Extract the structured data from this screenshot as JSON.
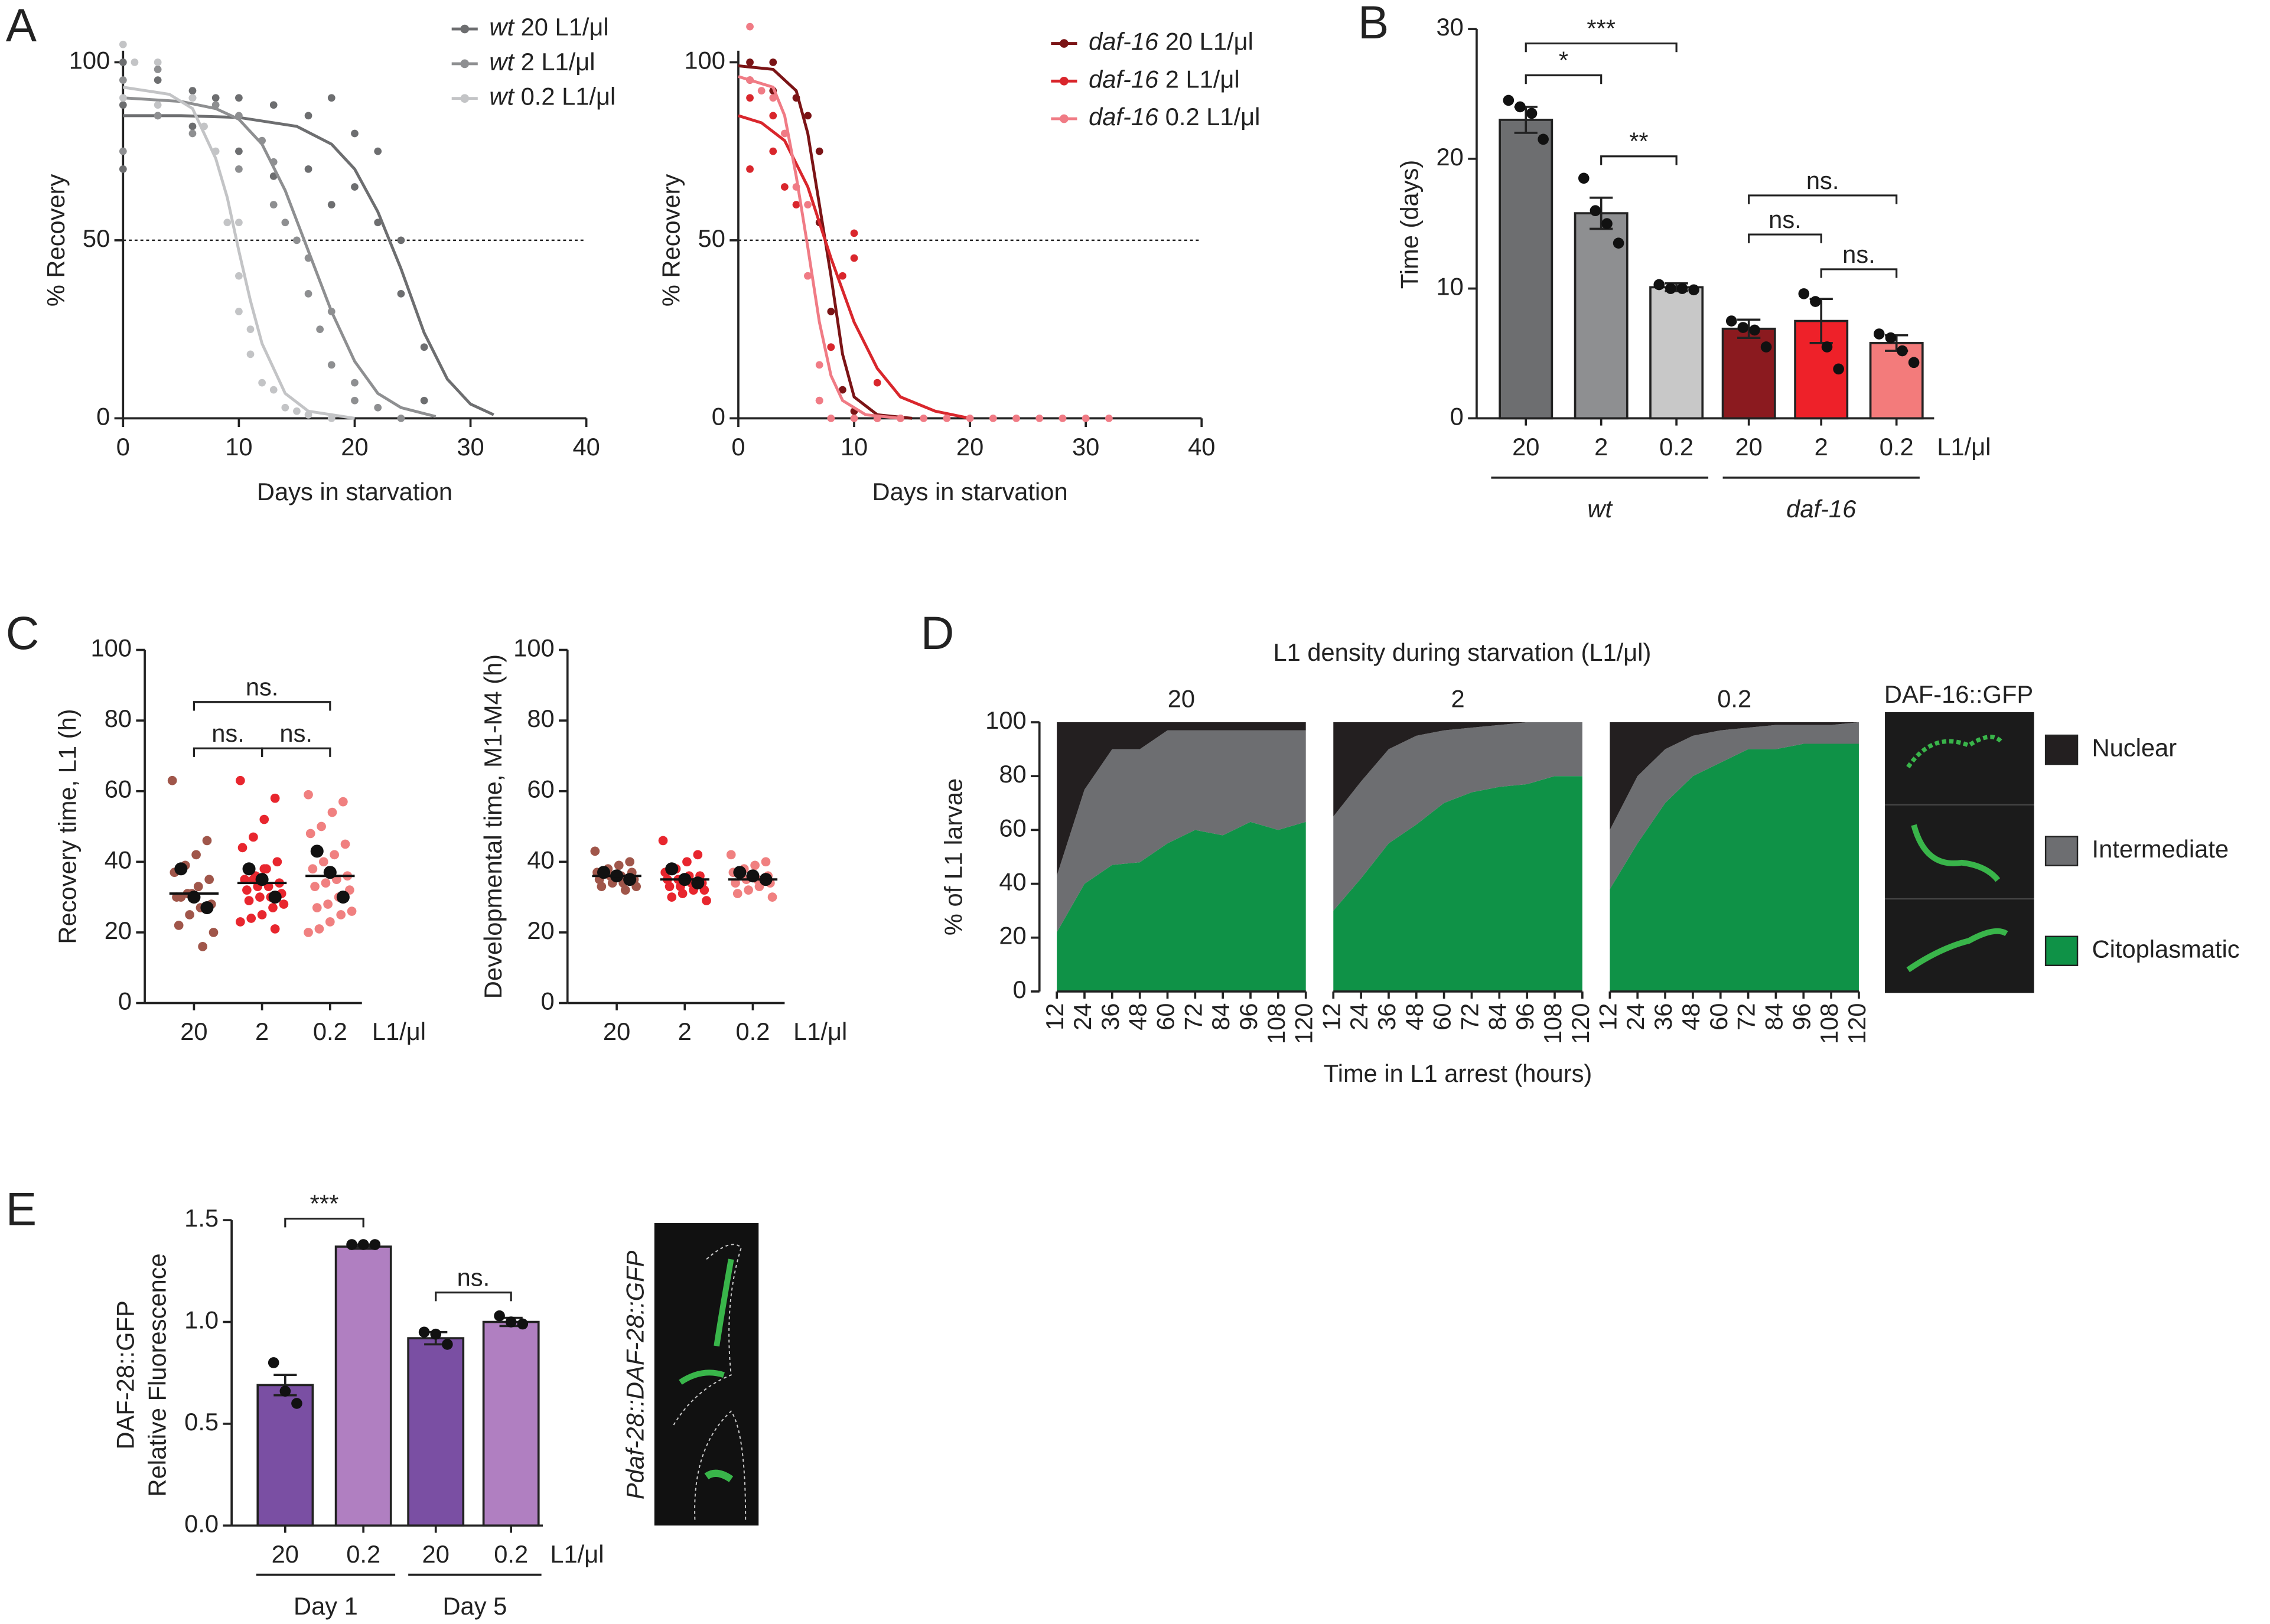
{
  "panel_labels": [
    "A",
    "B",
    "C",
    "D",
    "E"
  ],
  "chart_data": [
    {
      "type": "line",
      "ylabel": "% Recovery",
      "xlabel": "Days in starvation",
      "xlim": [
        0,
        40
      ],
      "xticks": [
        0,
        10,
        20,
        30,
        40
      ],
      "ylim": [
        0,
        100
      ],
      "yticks": [
        0,
        50,
        100
      ],
      "reference": 50,
      "series": [
        {
          "name": "wt 20 L1/μl",
          "color": "#6d6e70",
          "x": [
            0,
            5,
            10,
            15,
            18,
            20,
            22,
            23,
            24,
            26,
            28,
            30,
            32
          ],
          "values": [
            85,
            85,
            84.5,
            82,
            77,
            70,
            58,
            50,
            42,
            24,
            11,
            4,
            1
          ],
          "points_x": [
            0,
            0,
            0,
            3,
            3,
            6,
            6,
            8,
            10,
            10,
            13,
            13,
            16,
            16,
            18,
            18,
            20,
            20,
            22,
            22,
            24,
            24,
            26,
            26
          ],
          "points_y": [
            100,
            88,
            70,
            95,
            85,
            92,
            82,
            90,
            90,
            75,
            88,
            68,
            85,
            70,
            90,
            60,
            80,
            65,
            75,
            55,
            50,
            35,
            20,
            5
          ]
        },
        {
          "name": "wt 2 L1/μl",
          "color": "#8e8f91",
          "x": [
            0,
            5,
            8,
            10,
            12,
            14,
            16,
            18,
            20,
            22,
            24,
            27
          ],
          "values": [
            90,
            89,
            87,
            84,
            77,
            64,
            47,
            30,
            16,
            7,
            3,
            0.5
          ],
          "points_x": [
            0,
            0,
            3,
            3,
            6,
            6,
            8,
            10,
            10,
            12,
            13,
            13,
            14,
            15,
            16,
            16,
            17,
            18,
            18,
            20,
            20,
            22,
            24
          ],
          "points_y": [
            95,
            75,
            98,
            85,
            90,
            80,
            88,
            85,
            70,
            78,
            72,
            60,
            55,
            50,
            45,
            35,
            25,
            30,
            15,
            10,
            5,
            3,
            0
          ]
        },
        {
          "name": "wt 0.2 L1/μl",
          "color": "#c3c4c6",
          "x": [
            0,
            4,
            6,
            8,
            9,
            10,
            11,
            12,
            14,
            16,
            20
          ],
          "values": [
            93,
            91,
            87,
            73,
            62,
            47,
            33,
            21,
            7,
            2,
            0
          ],
          "points_x": [
            0,
            0,
            1,
            3,
            3,
            6,
            7,
            8,
            9,
            10,
            10,
            10,
            11,
            11,
            12,
            13,
            14,
            15,
            16,
            18
          ],
          "points_y": [
            105,
            90,
            100,
            100,
            88,
            90,
            82,
            75,
            55,
            55,
            40,
            30,
            25,
            18,
            10,
            8,
            3,
            2,
            1,
            0
          ]
        }
      ]
    },
    {
      "type": "line",
      "ylabel": "% Recovery",
      "xlabel": "Days in starvation",
      "xlim": [
        0,
        40
      ],
      "xticks": [
        0,
        10,
        20,
        30,
        40
      ],
      "ylim": [
        0,
        100
      ],
      "yticks": [
        0,
        50,
        100
      ],
      "reference": 50,
      "series": [
        {
          "name": "daf-16 20 L1/μl",
          "color": "#7b1416",
          "x": [
            0,
            3,
            5,
            6,
            7,
            7.5,
            8,
            9,
            10,
            12,
            15
          ],
          "values": [
            99,
            98,
            92,
            80,
            60,
            50,
            40,
            18,
            6,
            1,
            0
          ],
          "points_x": [
            1,
            1,
            3,
            3,
            5,
            6,
            7,
            7,
            8,
            8,
            9,
            10,
            12
          ],
          "points_y": [
            100,
            95,
            100,
            92,
            90,
            85,
            75,
            55,
            30,
            20,
            8,
            2,
            0
          ]
        },
        {
          "name": "daf-16 2 L1/μl",
          "color": "#d9262c",
          "x": [
            0,
            2,
            4,
            6,
            8,
            10,
            12,
            14,
            17,
            20
          ],
          "values": [
            85,
            83,
            78,
            65,
            45,
            27,
            14,
            6,
            2,
            0
          ],
          "points_x": [
            1,
            1,
            3,
            3,
            4,
            5,
            6,
            7,
            8,
            9,
            10,
            10,
            12,
            14
          ],
          "points_y": [
            90,
            70,
            85,
            75,
            65,
            60,
            40,
            5,
            20,
            40,
            52,
            45,
            10,
            0
          ]
        },
        {
          "name": "daf-16 0.2 L1/μl",
          "color": "#f07b85",
          "x": [
            0,
            3,
            4,
            5,
            6,
            7,
            8,
            9,
            11,
            14
          ],
          "values": [
            96,
            93,
            85,
            68,
            48,
            27,
            12,
            5,
            1,
            0
          ],
          "points_x": [
            1,
            1,
            2,
            3,
            4,
            5,
            6,
            6,
            7,
            7,
            8,
            10,
            12,
            14,
            16,
            18,
            20,
            22,
            24,
            26,
            28,
            30,
            32
          ],
          "points_y": [
            110,
            95,
            92,
            90,
            80,
            65,
            60,
            40,
            15,
            5,
            0,
            0,
            0,
            0,
            0,
            0,
            0,
            0,
            0,
            0,
            0,
            0,
            0
          ]
        }
      ]
    },
    {
      "type": "bar",
      "ylabel": "Time (days)",
      "ylim": [
        0,
        30
      ],
      "yticks": [
        0,
        10,
        20,
        30
      ],
      "categories": [
        "20",
        "2",
        "0.2",
        "20",
        "2",
        "0.2"
      ],
      "unit": "L1/μl",
      "groups": [
        "wt",
        "daf-16"
      ],
      "values": [
        23,
        15.8,
        10.1,
        6.9,
        7.5,
        5.8
      ],
      "errors": [
        1,
        1.2,
        0.3,
        0.7,
        1.7,
        0.6
      ],
      "colors": [
        "#6d6e70",
        "#8e8f91",
        "#c8c8c8",
        "#8b1a1f",
        "#ee2129",
        "#f37b7b"
      ],
      "points": [
        [
          24.5,
          24,
          23.5,
          21.5
        ],
        [
          18.5,
          16,
          15,
          13.5
        ],
        [
          10.3,
          10,
          10,
          9.9
        ],
        [
          7.5,
          7,
          6.8,
          5.5
        ],
        [
          9.6,
          9,
          5.5,
          3.8
        ],
        [
          6.5,
          6.2,
          5.2,
          4.3
        ]
      ],
      "annotations": [
        "***",
        "*",
        "**",
        "ns.",
        "ns.",
        "ns."
      ]
    },
    {
      "type": "strip",
      "ylabel": "Recovery time, L1 (h)",
      "ylim": [
        0,
        100
      ],
      "yticks": [
        0,
        20,
        40,
        60,
        80,
        100
      ],
      "categories": [
        "20",
        "2",
        "0.2"
      ],
      "unit": "L1/μl",
      "values": [
        31,
        34,
        36
      ],
      "colors": [
        "#a0564a",
        "#e8262e",
        "#f08080"
      ],
      "points": [
        [
          63,
          46,
          42,
          39,
          37,
          35,
          33,
          31,
          30,
          28,
          27,
          25,
          22,
          20,
          16,
          31,
          30
        ],
        [
          63,
          58,
          52,
          47,
          44,
          40,
          38,
          36,
          35,
          34,
          33,
          33,
          32,
          31,
          30,
          30,
          29,
          28,
          27,
          25,
          24,
          23,
          21,
          38,
          35
        ],
        [
          59,
          57,
          54,
          50,
          48,
          45,
          42,
          40,
          38,
          36,
          35,
          34,
          33,
          32,
          30,
          28,
          27,
          26,
          25,
          23,
          21,
          20
        ]
      ],
      "replicates": [
        [
          38,
          30,
          27
        ],
        [
          38,
          35,
          30
        ],
        [
          43,
          37,
          30
        ]
      ],
      "annotations": [
        "ns.",
        "ns.",
        "ns."
      ]
    },
    {
      "type": "strip",
      "ylabel": "Developmental time, M1-M4 (h)",
      "ylim": [
        0,
        100
      ],
      "yticks": [
        0,
        20,
        40,
        60,
        80,
        100
      ],
      "categories": [
        "20",
        "2",
        "0.2"
      ],
      "unit": "L1/μl",
      "values": [
        36,
        35,
        35
      ],
      "colors": [
        "#a0564a",
        "#e8262e",
        "#f08080"
      ],
      "points": [
        [
          43,
          40,
          39,
          38,
          37,
          37,
          36,
          36,
          35,
          35,
          34,
          34,
          33,
          33,
          32
        ],
        [
          46,
          42,
          40,
          38,
          37,
          36,
          36,
          35,
          35,
          34,
          34,
          33,
          33,
          32,
          32,
          31,
          30,
          29
        ],
        [
          42,
          40,
          39,
          38,
          37,
          36,
          35,
          35,
          34,
          34,
          33,
          32,
          31,
          30
        ]
      ],
      "replicates": [
        [
          37,
          36,
          35
        ],
        [
          38,
          35,
          34
        ],
        [
          37,
          36,
          35
        ]
      ]
    },
    {
      "type": "area",
      "title": "L1 density during starvation (L1/μl)",
      "xlabel": "Time in L1 arrest (hours)",
      "ylabel": "% of L1 larvae",
      "image_label": "DAF-16::GFP",
      "xlim": [
        12,
        120
      ],
      "x": [
        12,
        24,
        36,
        48,
        60,
        72,
        84,
        96,
        108,
        120
      ],
      "xticks": [
        12,
        24,
        36,
        48,
        60,
        72,
        84,
        96,
        108,
        120
      ],
      "ylim": [
        0,
        100
      ],
      "yticks": [
        0,
        20,
        40,
        60,
        80,
        100
      ],
      "series": [
        {
          "name": "Citoplasmatic",
          "color": "#0f9247"
        },
        {
          "name": "Intermediate",
          "color": "#6d6e71"
        },
        {
          "name": "Nuclear",
          "color": "#231f20"
        }
      ],
      "panels": [
        {
          "title": "20",
          "values": [
            [
              22,
              40,
              47,
              48,
              55,
              60,
              58,
              63,
              60,
              63
            ],
            [
              21,
              35,
              43,
              42,
              42,
              37,
              39,
              34,
              37,
              34
            ],
            [
              57,
              25,
              10,
              10,
              3,
              3,
              3,
              3,
              3,
              3
            ]
          ]
        },
        {
          "title": "2",
          "values": [
            [
              30,
              42,
              55,
              62,
              70,
              74,
              76,
              77,
              80,
              80
            ],
            [
              35,
              36,
              35,
              33,
              27,
              24,
              23,
              23,
              20,
              20
            ],
            [
              35,
              22,
              10,
              5,
              3,
              2,
              1,
              0,
              0,
              0
            ]
          ]
        },
        {
          "title": "0.2",
          "values": [
            [
              38,
              55,
              70,
              80,
              85,
              90,
              90,
              92,
              92,
              92
            ],
            [
              22,
              25,
              20,
              15,
              12,
              8,
              9,
              7,
              7,
              8
            ],
            [
              40,
              20,
              10,
              5,
              3,
              2,
              1,
              1,
              1,
              0
            ]
          ]
        }
      ]
    },
    {
      "type": "bar",
      "ylabel": [
        "DAF-28::GFP",
        "Relative Fluorescence"
      ],
      "image_label": "Pdaf-28::DAF-28::GFP",
      "ylim": [
        0,
        1.5
      ],
      "yticks": [
        {
          "value": 0,
          "label": "0.0"
        },
        0.5,
        {
          "value": 1,
          "label": "1.0"
        },
        1.5
      ],
      "categories": [
        "20",
        "0.2",
        "20",
        "0.2"
      ],
      "unit": "L1/μl",
      "groups": [
        "Day 1",
        "Day 5"
      ],
      "values": [
        0.69,
        1.37,
        0.92,
        1.0
      ],
      "errors": [
        0.05,
        0.01,
        0.03,
        0.02
      ],
      "colors": [
        "#7a4fa3",
        "#b07fc1",
        "#7a4fa3",
        "#b07fc1"
      ],
      "points": [
        [
          0.8,
          0.66,
          0.6
        ],
        [
          1.38,
          1.38,
          1.38
        ],
        [
          0.95,
          0.94,
          0.89
        ],
        [
          1.03,
          1.0,
          0.99
        ]
      ],
      "annotations": [
        "***",
        "ns."
      ]
    }
  ]
}
